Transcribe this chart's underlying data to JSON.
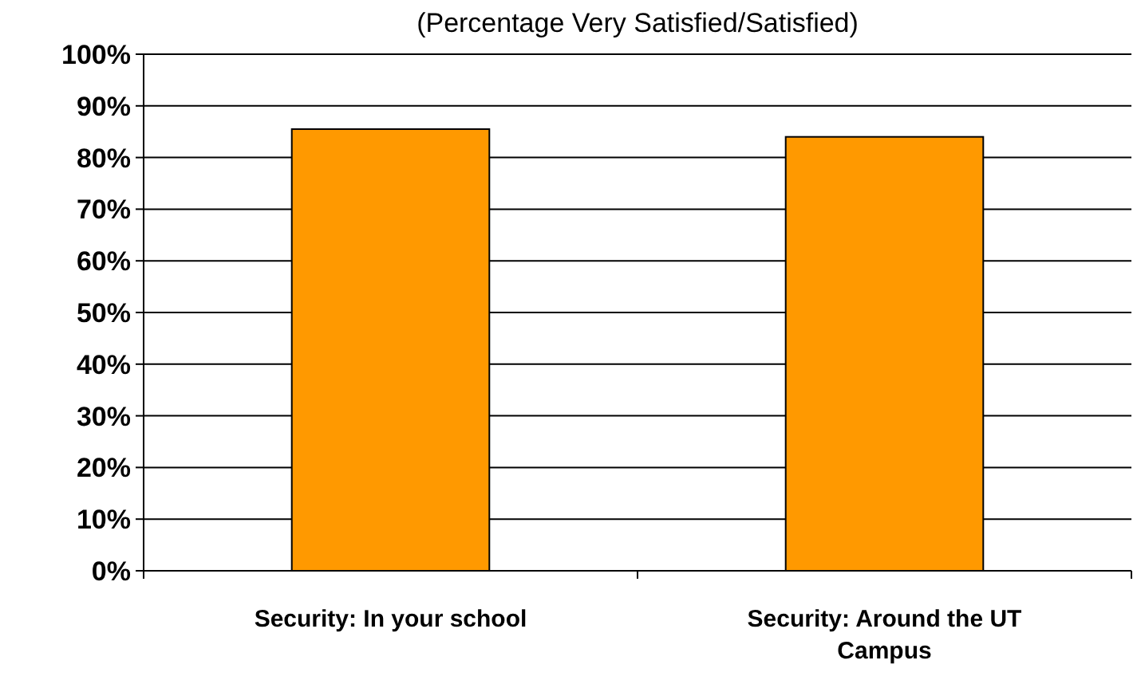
{
  "chart_data": {
    "type": "bar",
    "subtitle": "(Percentage Very Satisfied/Satisfied)",
    "categories": [
      "Security: In your school",
      "Security: Around the UT Campus"
    ],
    "values": [
      85.5,
      84
    ],
    "color": "#ff9900",
    "ylim": [
      0,
      100
    ],
    "yticks": [
      {
        "value": 0,
        "label": "0%"
      },
      {
        "value": 10,
        "label": "10%"
      },
      {
        "value": 20,
        "label": "20%"
      },
      {
        "value": 30,
        "label": "30%"
      },
      {
        "value": 40,
        "label": "40%"
      },
      {
        "value": 50,
        "label": "50%"
      },
      {
        "value": 60,
        "label": "60%"
      },
      {
        "value": 70,
        "label": "70%"
      },
      {
        "value": 80,
        "label": "80%"
      },
      {
        "value": 90,
        "label": "90%"
      },
      {
        "value": 100,
        "label": "100%"
      }
    ],
    "grid": "y"
  }
}
